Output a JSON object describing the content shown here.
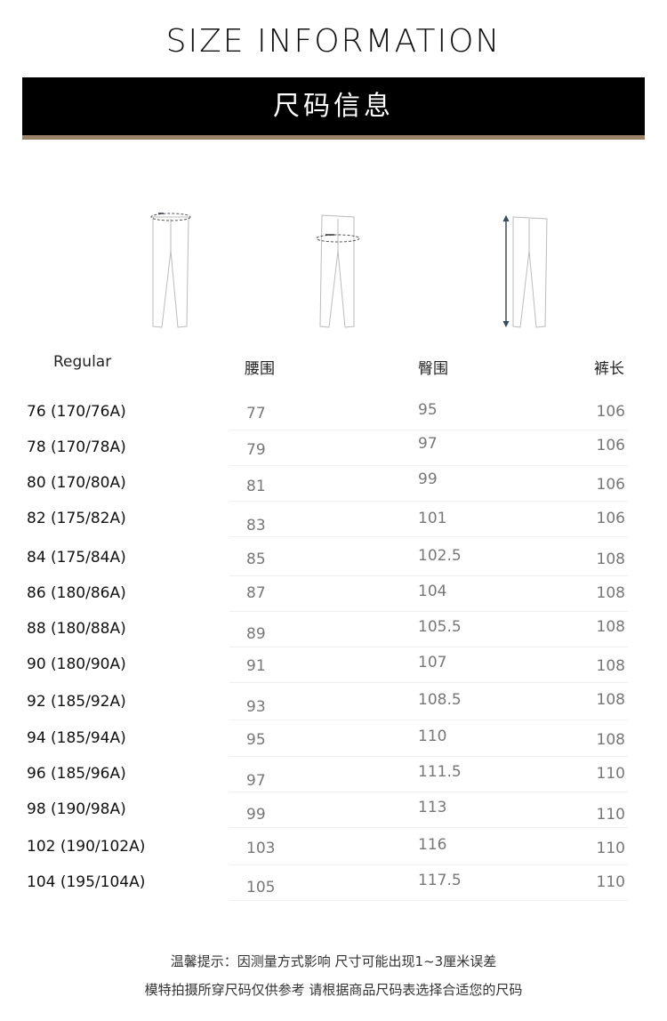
{
  "header": {
    "title": "SIZE INFORMATION",
    "subtitle": "尺码信息"
  },
  "colors": {
    "bar": "#000000",
    "accent_stripe": "#998266"
  },
  "illustrations": [
    "waist-measure-icon",
    "hip-measure-icon",
    "length-measure-icon"
  ],
  "table": {
    "columns": [
      "Regular",
      "腰围",
      "臀围",
      "裤长"
    ],
    "rows": [
      [
        "76 (170/76A)",
        "77",
        "95",
        "106"
      ],
      [
        "78 (170/78A)",
        "79",
        "97",
        "106"
      ],
      [
        "80 (170/80A)",
        "81",
        "99",
        "106"
      ],
      [
        "82 (175/82A)",
        "83",
        "101",
        "106"
      ],
      [
        "84 (175/84A)",
        "85",
        "102.5",
        "108"
      ],
      [
        "86 (180/86A)",
        "87",
        "104",
        "108"
      ],
      [
        "88 (180/88A)",
        "89",
        "105.5",
        "108"
      ],
      [
        "90 (180/90A)",
        "91",
        "107",
        "108"
      ],
      [
        "92 (185/92A)",
        "93",
        "108.5",
        "108"
      ],
      [
        "94 (185/94A)",
        "95",
        "110",
        "108"
      ],
      [
        "96 (185/96A)",
        "97",
        "111.5",
        "110"
      ],
      [
        "98 (190/98A)",
        "99",
        "113",
        "110"
      ],
      [
        "102 (190/102A)",
        "103",
        "116",
        "110"
      ],
      [
        "104 (195/104A)",
        "105",
        "117.5",
        "110"
      ]
    ]
  },
  "notes": [
    "温馨提示：因测量方式影响 尺寸可能出现1~3厘米误差",
    "模特拍摄所穿尺码仅供参考 请根据商品尺码表选择合适您的尺码"
  ]
}
